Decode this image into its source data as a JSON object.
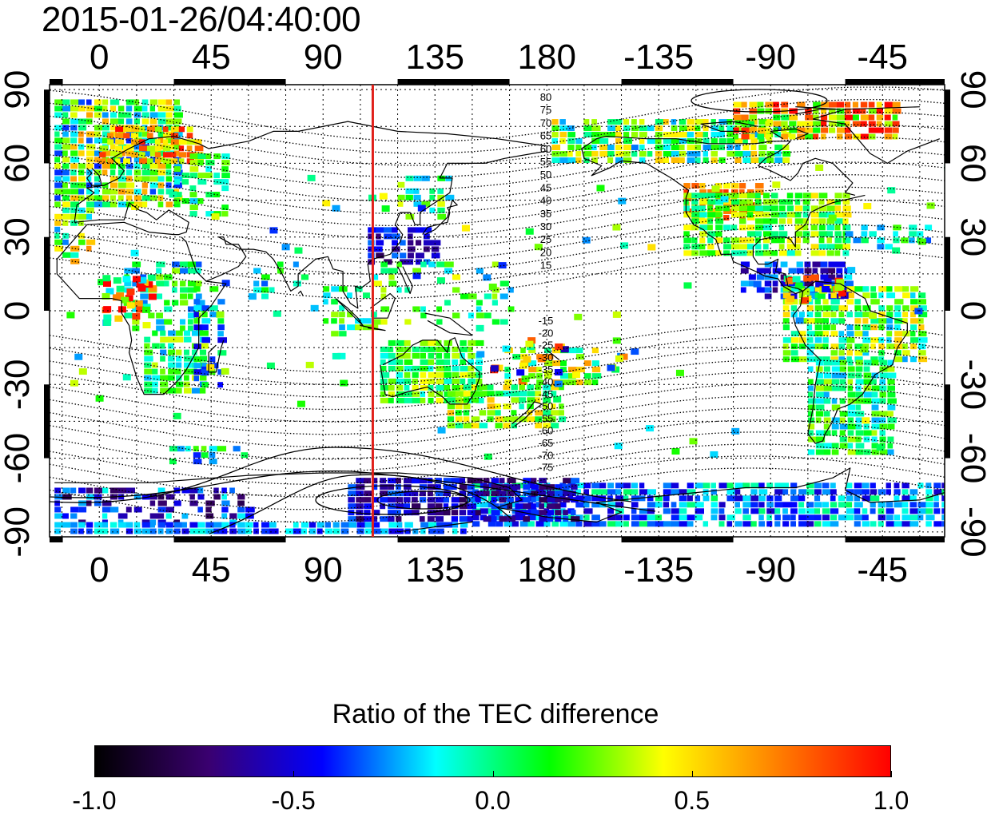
{
  "timestamp": "2015-01-26/04:40:00",
  "map": {
    "lon_ticks": [
      {
        "lon": 0,
        "label": "0"
      },
      {
        "lon": 45,
        "label": "45"
      },
      {
        "lon": 90,
        "label": "90"
      },
      {
        "lon": 135,
        "label": "135"
      },
      {
        "lon": 180,
        "label": "180"
      },
      {
        "lon": 225,
        "label": "-135"
      },
      {
        "lon": 270,
        "label": "-90"
      },
      {
        "lon": 315,
        "label": "-45"
      }
    ],
    "lat_ticks": [
      {
        "lat": 90,
        "label": "90"
      },
      {
        "lat": 60,
        "label": "60"
      },
      {
        "lat": 30,
        "label": "30"
      },
      {
        "lat": 0,
        "label": "0"
      },
      {
        "lat": -30,
        "label": "-30"
      },
      {
        "lat": -60,
        "label": "-60"
      },
      {
        "lat": -90,
        "label": "-90"
      }
    ],
    "lon_range": [
      -20,
      340
    ],
    "lat_range": [
      -92,
      92
    ],
    "terminator_lon": 110,
    "terminator_color": "#e0201a",
    "contour_labels_north": [
      "80",
      "75",
      "70",
      "65",
      "60",
      "55",
      "50",
      "45",
      "40",
      "35",
      "30",
      "25",
      "20",
      "15"
    ],
    "contour_labels_south": [
      "-15",
      "-20",
      "-25",
      "-30",
      "-35",
      "-40",
      "-45",
      "-50",
      "-55",
      "-60",
      "-65",
      "-70",
      "-75"
    ],
    "contour_label_lon": 178
  },
  "colorbar": {
    "title": "Ratio of the TEC difference",
    "min": -1.0,
    "max": 1.0,
    "stops": [
      "#000000",
      "#3a0070",
      "#0000ff",
      "#00ffff",
      "#00ff00",
      "#ffff00",
      "#ff8000",
      "#ff0000"
    ],
    "ticks": [
      {
        "value": -1.0,
        "label": "-1.0"
      },
      {
        "value": -0.5,
        "label": "-0.5"
      },
      {
        "value": 0.0,
        "label": "0.0"
      },
      {
        "value": 0.5,
        "label": "0.5"
      },
      {
        "value": 1.0,
        "label": "1.0"
      }
    ]
  }
}
